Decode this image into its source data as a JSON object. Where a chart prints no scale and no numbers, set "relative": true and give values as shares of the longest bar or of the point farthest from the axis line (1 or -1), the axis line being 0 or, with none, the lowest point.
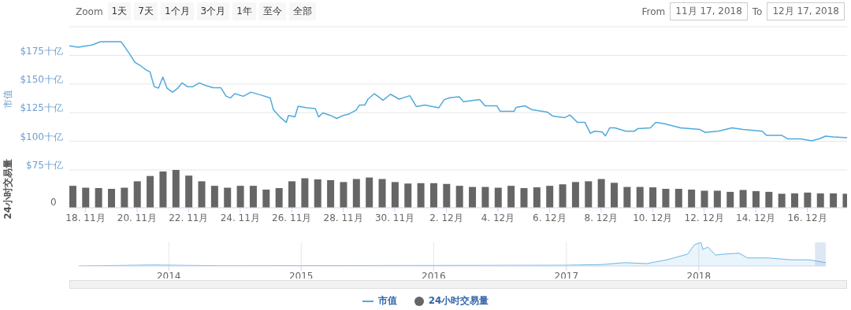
{
  "chart_data": [
    {
      "type": "line",
      "ylabel": "市值",
      "annotations": [
        "Zoom",
        "1天",
        "7天",
        "1个月",
        "3个月",
        "1年",
        "至今",
        "全部",
        "From",
        "11月 17, 2018",
        "To",
        "12月 17, 2018"
      ],
      "xlim": [
        "2018-11-17T09:00",
        "2018-12-17T13:00"
      ],
      "xticks": [
        {
          "value": "2018-11-18",
          "label": null
        },
        {
          "value": "2018-11-20",
          "label": null
        },
        {
          "value": "2018-11-22",
          "label": null
        },
        {
          "value": "2018-11-24",
          "label": null
        },
        {
          "value": "2018-11-26",
          "label": null
        },
        {
          "value": "2018-11-28",
          "label": null
        },
        {
          "value": "2018-11-30",
          "label": null
        },
        {
          "value": "2018-12-02",
          "label": null
        },
        {
          "value": "2018-12-04",
          "label": null
        },
        {
          "value": "2018-12-06",
          "label": null
        },
        {
          "value": "2018-12-08",
          "label": null
        },
        {
          "value": "2018-12-10",
          "label": null
        },
        {
          "value": "2018-12-12",
          "label": null
        },
        {
          "value": "2018-12-14",
          "label": null
        },
        {
          "value": "2018-12-16",
          "label": null
        }
      ],
      "ylim": [
        75,
        200
      ],
      "yticks": [
        {
          "value": 75,
          "label": "$75十亿"
        },
        {
          "value": 100,
          "label": "$100十亿"
        },
        {
          "value": 125,
          "label": "$125十亿"
        },
        {
          "value": 150,
          "label": "$150十亿"
        },
        {
          "value": 175,
          "label": "$175十亿"
        },
        {
          "value": 200,
          "label": null
        }
      ],
      "grid": "y",
      "tick_labels": "y",
      "legend": "bottom",
      "series": [
        {
          "name": "市值",
          "color": "#4fa9dd",
          "x": [
            "2018-11-17T09:00",
            "2018-11-17T17:00",
            "2018-11-18T06:00",
            "2018-11-18T14:00",
            "2018-11-19T02:00",
            "2018-11-19T09:00",
            "2018-11-19T12:00",
            "2018-11-19T18:00",
            "2018-11-19T22:00",
            "2018-11-20T04:00",
            "2018-11-20T09:00",
            "2018-11-20T12:00",
            "2018-11-20T16:00",
            "2018-11-20T20:00",
            "2018-11-21T00:00",
            "2018-11-21T04:00",
            "2018-11-21T09:00",
            "2018-11-21T14:00",
            "2018-11-21T18:00",
            "2018-11-21T23:00",
            "2018-11-22T04:00",
            "2018-11-22T10:00",
            "2018-11-22T16:00",
            "2018-11-22T23:00",
            "2018-11-23T06:00",
            "2018-11-23T11:00",
            "2018-11-23T15:00",
            "2018-11-23T19:00",
            "2018-11-24T03:00",
            "2018-11-24T10:00",
            "2018-11-24T19:00",
            "2018-11-25T04:00",
            "2018-11-25T07:00",
            "2018-11-25T13:00",
            "2018-11-25T19:00",
            "2018-11-25T21:00",
            "2018-11-26T03:00",
            "2018-11-26T06:00",
            "2018-11-26T14:00",
            "2018-11-26T22:00",
            "2018-11-27T01:00",
            "2018-11-27T05:00",
            "2018-11-27T12:00",
            "2018-11-27T18:00",
            "2018-11-28T00:00",
            "2018-11-28T05:00",
            "2018-11-28T12:00",
            "2018-11-28T15:00",
            "2018-11-28T20:00",
            "2018-11-28T23:00",
            "2018-11-29T05:00",
            "2018-11-29T13:00",
            "2018-11-29T20:00",
            "2018-11-30T04:00",
            "2018-11-30T14:00",
            "2018-11-30T20:00",
            "2018-12-01T04:00",
            "2018-12-01T17:00",
            "2018-12-01T22:00",
            "2018-12-02T03:00",
            "2018-12-02T12:00",
            "2018-12-02T16:00",
            "2018-12-03T07:00",
            "2018-12-03T12:00",
            "2018-12-03T23:00",
            "2018-12-04T02:00",
            "2018-12-04T15:00",
            "2018-12-04T17:00",
            "2018-12-05T01:00",
            "2018-12-05T08:00",
            "2018-12-05T22:00",
            "2018-12-06T03:00",
            "2018-12-06T14:00",
            "2018-12-06T19:00",
            "2018-12-07T02:00",
            "2018-12-07T09:00",
            "2018-12-07T14:00",
            "2018-12-07T18:00",
            "2018-12-08T01:00",
            "2018-12-08T04:00",
            "2018-12-08T08:00",
            "2018-12-08T13:00",
            "2018-12-08T23:00",
            "2018-12-09T07:00",
            "2018-12-09T10:00",
            "2018-12-09T22:00",
            "2018-12-10T03:00",
            "2018-12-10T11:00",
            "2018-12-11T02:00",
            "2018-12-11T20:00",
            "2018-12-12T01:00",
            "2018-12-12T13:00",
            "2018-12-13T02:00",
            "2018-12-13T12:00",
            "2018-12-14T06:00",
            "2018-12-14T10:00",
            "2018-12-15T00:00",
            "2018-12-15T06:00",
            "2018-12-15T18:00",
            "2018-12-16T04:00",
            "2018-12-16T11:00",
            "2018-12-16T17:00",
            "2018-12-17T00:00",
            "2018-12-17T13:00"
          ],
          "values": [
            183.3,
            182.2,
            184,
            186.9,
            186.9,
            186.9,
            183.3,
            175,
            169,
            165.5,
            162,
            160.8,
            147.7,
            146.4,
            156,
            146.4,
            142.9,
            146.4,
            151,
            147.7,
            147.7,
            151,
            148.7,
            146.8,
            146.8,
            139.3,
            137.9,
            141.6,
            139.3,
            142.9,
            140.5,
            137.9,
            127.5,
            121.3,
            116.5,
            122.6,
            121.3,
            130.6,
            129.3,
            128.6,
            121.3,
            124.8,
            122.6,
            120,
            122.6,
            123.7,
            127.3,
            131.6,
            131.6,
            136.8,
            141.6,
            135.9,
            141.1,
            136.8,
            139.8,
            130.3,
            131.6,
            129.3,
            136.4,
            138,
            138.8,
            134.5,
            136.4,
            131,
            131,
            126.2,
            126.2,
            129.6,
            131,
            127.5,
            125.5,
            122,
            120.6,
            123,
            116.5,
            116.5,
            107,
            108.8,
            108.2,
            104.7,
            111.7,
            111.7,
            108.8,
            108.8,
            111,
            111.7,
            116.5,
            115.4,
            111.7,
            110.3,
            107.8,
            108.8,
            111.7,
            110.3,
            108.8,
            105.3,
            105.3,
            102.1,
            102.1,
            100.4,
            102.1,
            104.5,
            103.8,
            103.1
          ]
        }
      ]
    },
    {
      "type": "bar",
      "ylabel": "24小时交易量",
      "relative": true,
      "annotations": [
        "0"
      ],
      "legend": "bottom",
      "xlim": [
        "2018-11-17T09:00",
        "2018-12-17T13:00"
      ],
      "xticks": [
        {
          "value": "2018-11-18",
          "label": "18. 11月"
        },
        {
          "value": "2018-11-20",
          "label": "20. 11月"
        },
        {
          "value": "2018-11-22",
          "label": "22. 11月"
        },
        {
          "value": "2018-11-24",
          "label": "24. 11月"
        },
        {
          "value": "2018-11-26",
          "label": "26. 11月"
        },
        {
          "value": "2018-11-28",
          "label": "28. 11月"
        },
        {
          "value": "2018-11-30",
          "label": "30. 11月"
        },
        {
          "value": "2018-12-02",
          "label": "2. 12月"
        },
        {
          "value": "2018-12-04",
          "label": "4. 12月"
        },
        {
          "value": "2018-12-06",
          "label": "6. 12月"
        },
        {
          "value": "2018-12-08",
          "label": "8. 12月"
        },
        {
          "value": "2018-12-10",
          "label": "10. 12月"
        },
        {
          "value": "2018-12-12",
          "label": "12. 12月"
        },
        {
          "value": "2018-12-14",
          "label": "14. 12月"
        },
        {
          "value": "2018-12-16",
          "label": "16. 12月"
        }
      ],
      "series": [
        {
          "name": "24小时交易量",
          "color": "#666666",
          "x": [
            "2018-11-17T12:00",
            "2018-11-18T00:00",
            "2018-11-18T12:00",
            "2018-11-19T00:00",
            "2018-11-19T12:00",
            "2018-11-20T00:00",
            "2018-11-20T12:00",
            "2018-11-21T00:00",
            "2018-11-21T12:00",
            "2018-11-22T00:00",
            "2018-11-22T12:00",
            "2018-11-23T00:00",
            "2018-11-23T12:00",
            "2018-11-24T00:00",
            "2018-11-24T12:00",
            "2018-11-25T00:00",
            "2018-11-25T12:00",
            "2018-11-26T00:00",
            "2018-11-26T12:00",
            "2018-11-27T00:00",
            "2018-11-27T12:00",
            "2018-11-28T00:00",
            "2018-11-28T12:00",
            "2018-11-29T00:00",
            "2018-11-29T12:00",
            "2018-11-30T00:00",
            "2018-11-30T12:00",
            "2018-12-01T00:00",
            "2018-12-01T12:00",
            "2018-12-02T00:00",
            "2018-12-02T12:00",
            "2018-12-03T00:00",
            "2018-12-03T12:00",
            "2018-12-04T00:00",
            "2018-12-04T12:00",
            "2018-12-05T00:00",
            "2018-12-05T12:00",
            "2018-12-06T00:00",
            "2018-12-06T12:00",
            "2018-12-07T00:00",
            "2018-12-07T12:00",
            "2018-12-08T00:00",
            "2018-12-08T12:00",
            "2018-12-09T00:00",
            "2018-12-09T12:00",
            "2018-12-10T00:00",
            "2018-12-10T12:00",
            "2018-12-11T00:00",
            "2018-12-11T12:00",
            "2018-12-12T00:00",
            "2018-12-12T12:00",
            "2018-12-13T00:00",
            "2018-12-13T12:00",
            "2018-12-14T00:00",
            "2018-12-14T12:00",
            "2018-12-15T00:00",
            "2018-12-15T12:00",
            "2018-12-16T00:00",
            "2018-12-16T12:00",
            "2018-12-17T00:00",
            "2018-12-17T12:00"
          ],
          "values": [
            0.58,
            0.53,
            0.52,
            0.5,
            0.53,
            0.7,
            0.84,
            0.96,
            1,
            0.85,
            0.7,
            0.58,
            0.53,
            0.58,
            0.58,
            0.48,
            0.52,
            0.7,
            0.78,
            0.75,
            0.73,
            0.68,
            0.76,
            0.8,
            0.76,
            0.68,
            0.64,
            0.65,
            0.65,
            0.63,
            0.58,
            0.55,
            0.55,
            0.53,
            0.58,
            0.52,
            0.54,
            0.58,
            0.62,
            0.68,
            0.7,
            0.76,
            0.66,
            0.55,
            0.55,
            0.54,
            0.5,
            0.5,
            0.48,
            0.45,
            0.45,
            0.42,
            0.47,
            0.44,
            0.42,
            0.37,
            0.38,
            0.4,
            0.38,
            0.38,
            0.37
          ]
        }
      ]
    },
    {
      "type": "area",
      "relative": true,
      "grid": "x",
      "xlim": [
        "2013-04-28",
        "2018-12-17"
      ],
      "xticks": [
        "2014",
        "2015",
        "2016",
        "2017",
        "2018"
      ],
      "bands": [
        {
          "axis": "x",
          "from": "2018-11-17",
          "to": "2018-12-17",
          "color": "#d6e2f0"
        }
      ],
      "series": [
        {
          "color": "#6ab7e3",
          "x": [
            "2013-04-28",
            "2013-11-15",
            "2014-06-01",
            "2017-01-01",
            "2017-04-10",
            "2017-06-10",
            "2017-08-10",
            "2017-10-05",
            "2017-12-01",
            "2017-12-20",
            "2018-01-07",
            "2018-01-12",
            "2018-01-26",
            "2018-02-16",
            "2018-03-10",
            "2018-04-22",
            "2018-05-15",
            "2018-07-12",
            "2018-09-12",
            "2018-11-01",
            "2018-12-17"
          ],
          "values": [
            0,
            0.04,
            0.01,
            0.03,
            0.06,
            0.14,
            0.1,
            0.26,
            0.5,
            0.9,
            1,
            0.7,
            0.8,
            0.46,
            0.5,
            0.54,
            0.34,
            0.34,
            0.26,
            0.26,
            0.14
          ]
        }
      ]
    }
  ]
}
